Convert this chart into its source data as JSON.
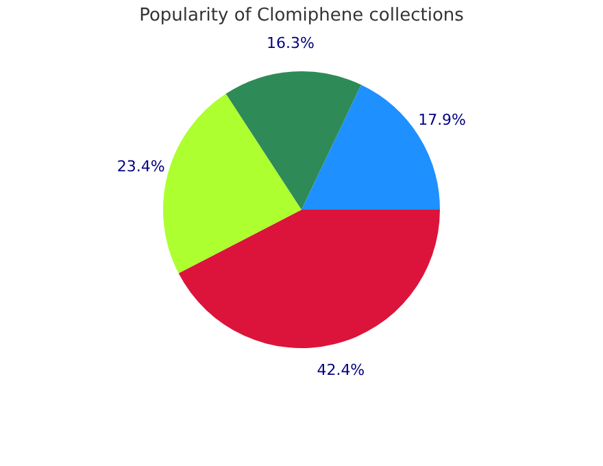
{
  "chart_data": {
    "type": "pie",
    "title": "Popularity of Clomiphene collections",
    "categories": [
      null,
      null,
      null,
      null
    ],
    "values": [
      42.4,
      23.4,
      16.3,
      17.9
    ],
    "colors": [
      "#dc143c",
      "#adff2f",
      "#2e8b57",
      "#1e90ff"
    ],
    "value_labels": [
      "42.4%",
      "23.4%",
      "16.3%",
      "17.9%"
    ],
    "legend": false
  }
}
